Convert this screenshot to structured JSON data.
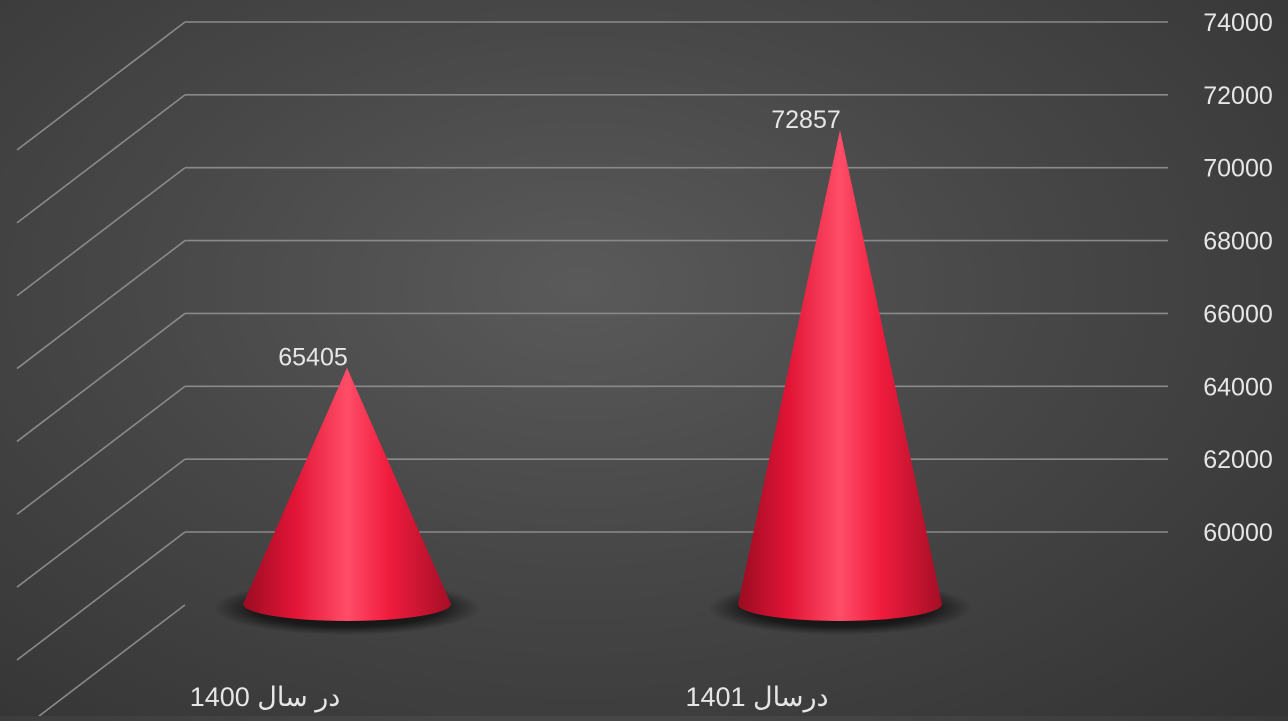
{
  "chart_data": {
    "type": "bar",
    "style": "3d-cone",
    "categories": [
      "در سال 1400",
      "درسال  1401"
    ],
    "series": [
      {
        "values": [
          65405,
          72857
        ]
      }
    ],
    "data_labels": [
      "65405",
      "72857"
    ],
    "ylim": [
      58000,
      74000
    ],
    "yticks": [
      "60000",
      "62000",
      "64000",
      "66000",
      "68000",
      "70000",
      "72000",
      "74000"
    ],
    "y_axis_side": "right",
    "grid": true,
    "colors": {
      "cone": "#e8183a",
      "cone_highlight": "#ff5a72",
      "cone_shadow": "#8a0a1e",
      "grid": "#8a8a8a",
      "text": "#e6e6e6",
      "background": "#4a4a4a"
    }
  }
}
